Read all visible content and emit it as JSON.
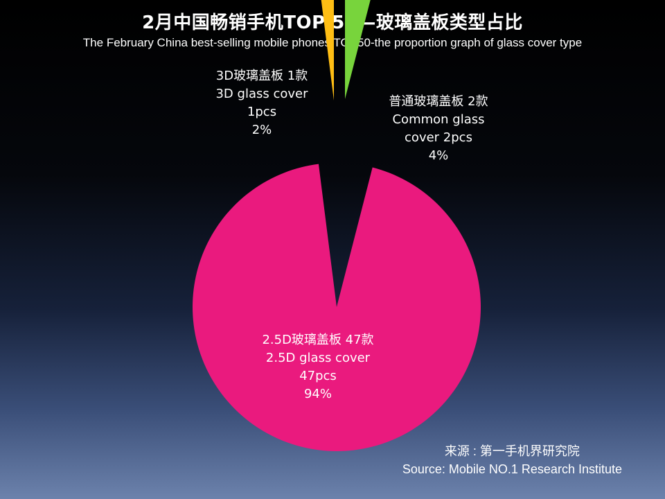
{
  "chart_data": {
    "type": "pie",
    "title": "2月中国畅销手机TOP 50—玻璃盖板类型占比",
    "subtitle": "The February China best-selling mobile phones TOP50-the proportion graph of glass cover type",
    "total": 50,
    "slices": [
      {
        "key": "common",
        "count": 2,
        "percent": 4,
        "color": "#78d43c",
        "label_lines": [
          "普通玻璃盖板 2款",
          "Common glass",
          "cover 2pcs",
          "4%"
        ]
      },
      {
        "key": "2-5d",
        "count": 47,
        "percent": 94,
        "color": "#ea1a7e",
        "label_lines": [
          "2.5D玻璃盖板 47款",
          "2.5D glass cover",
          "47pcs",
          "94%"
        ]
      },
      {
        "key": "3d",
        "count": 1,
        "percent": 2,
        "color": "#ffbe14",
        "label_lines": [
          "3D玻璃盖板 1款",
          "3D glass cover",
          "1pcs",
          "2%"
        ]
      }
    ]
  },
  "source": {
    "line1": "来源 : 第一手机界研究院",
    "line2": "Source: Mobile NO.1 Research Institute"
  }
}
